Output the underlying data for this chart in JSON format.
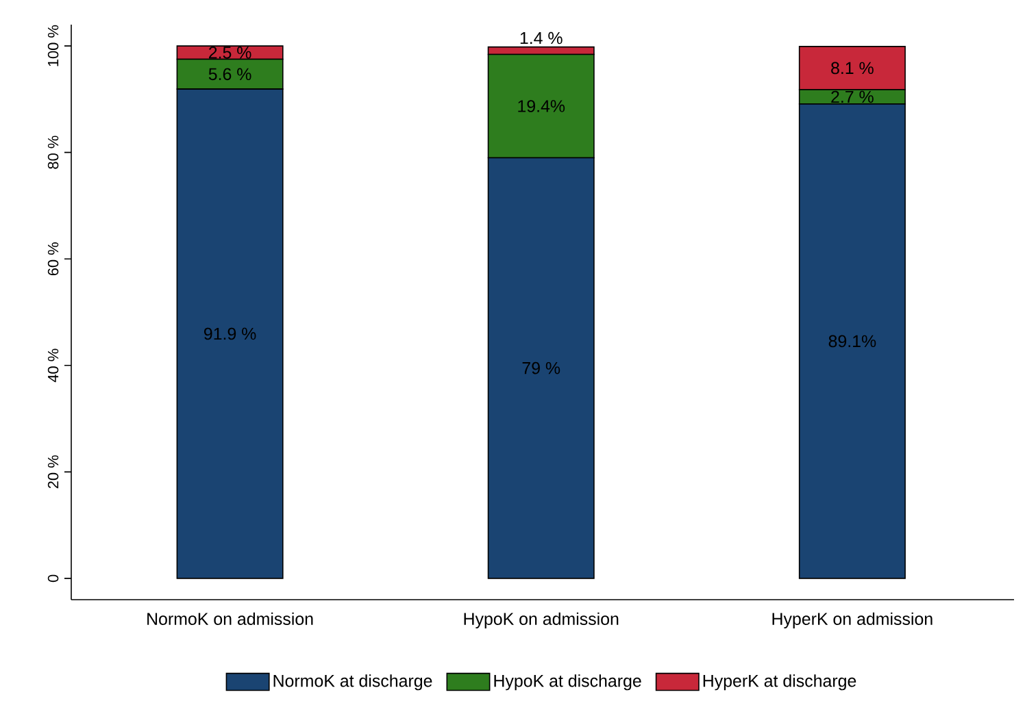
{
  "chart_data": {
    "type": "bar",
    "stacked": true,
    "categories": [
      "NormoK on admission",
      "HypoK on admission",
      "HyperK on admission"
    ],
    "series": [
      {
        "name": "NormoK at discharge",
        "color": "#1a4472",
        "values": [
          91.9,
          79,
          89.1
        ],
        "value_labels": [
          "91.9 %",
          "79 %",
          "89.1%"
        ]
      },
      {
        "name": "HypoK at discharge",
        "color": "#2e7d1e",
        "values": [
          5.6,
          19.4,
          2.7
        ],
        "value_labels": [
          "5.6 %",
          "19.4%",
          "2.7 %"
        ]
      },
      {
        "name": "HyperK at discharge",
        "color": "#c8283a",
        "values": [
          2.5,
          1.4,
          8.1
        ],
        "value_labels": [
          "2.5 %",
          "1.4 %",
          "8.1 %"
        ]
      }
    ],
    "ylim": [
      -4,
      104
    ],
    "yticks": [
      0,
      {
        "value": 20,
        "label": "20 %"
      },
      {
        "value": 40,
        "label": "40 %"
      },
      {
        "value": 60,
        "label": "60 %"
      },
      {
        "value": 80,
        "label": "80 %"
      },
      {
        "value": 100,
        "label": "100 %"
      }
    ],
    "legend": "bottom"
  }
}
